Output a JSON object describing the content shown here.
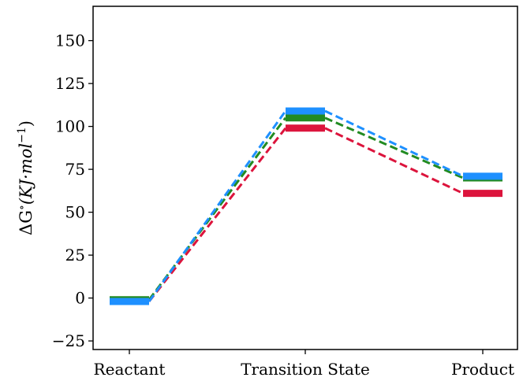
{
  "chart_data": {
    "type": "line",
    "categories": [
      "Reactant",
      "Transition State",
      "Product"
    ],
    "ylabel": "ΔG°(KJ·mol⁻¹)",
    "ylabel_parts": {
      "prefix": "ΔG",
      "sup1": "∘",
      "mid": "(KJ·mol",
      "sup2": "−1",
      "suffix": ")"
    },
    "ylim": [
      -30,
      170
    ],
    "yticks": [
      -25,
      0,
      25,
      50,
      75,
      100,
      125,
      150
    ],
    "ytick_labels": [
      "−25",
      "0",
      "25",
      "50",
      "75",
      "100",
      "125",
      "150"
    ],
    "grid": false,
    "legend": "none",
    "series": [
      {
        "color": "#dc143c",
        "values": [
          -2,
          99,
          61
        ]
      },
      {
        "color": "#228b22",
        "values": [
          -1,
          105,
          70
        ]
      },
      {
        "color": "#1e90ff",
        "values": [
          -2,
          109,
          71
        ]
      }
    ]
  }
}
